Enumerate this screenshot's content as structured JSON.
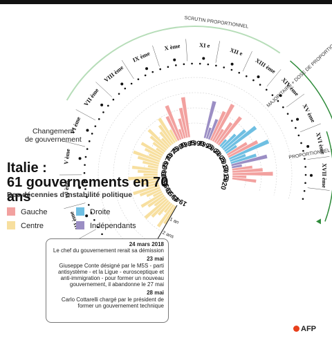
{
  "title": "Italie :\n61 gouvernements en 70 ans",
  "subtitle": "Des décennies d'instabilité politique",
  "legend": [
    {
      "label": "Gauche",
      "color": "#f2a19f"
    },
    {
      "label": "Droite",
      "color": "#6fbfe2"
    },
    {
      "label": "Centre",
      "color": "#f7df9f"
    },
    {
      "label": "Indépendants",
      "color": "#9b8ec4"
    }
  ],
  "changement_label": "Changement\nde gouvernement",
  "ring_labels": {
    "scrutin_proportionnel": "SCRUTIN PROPORTIONNEL",
    "majoritaire": "MAJORITAIRE + DOSE DE PROPORTIONNELLE",
    "proportionnel_prime": "PROPORTIONNEL + PRIME AU VAINQUEUR"
  },
  "callout": [
    {
      "date": "24 mars 2018",
      "text": "Le chef du gouvernement rerait sa démission"
    },
    {
      "date": "23 mai",
      "text": "Giuseppe Conte désigné par le M5S - parti antisystème - et la Ligue - eurosceptique et anti-immigration - pour former un nouveau gouvernement, il abandonne le 27 mai"
    },
    {
      "date": "28 mai",
      "text": "Carlo Cottarelli chargé par le président de former un gouvernement technique"
    }
  ],
  "credit": "AFP",
  "chart_data": {
    "type": "bar",
    "layout": "radial",
    "year_ticks": [
      "1945",
      "1950",
      "1955",
      "1960",
      "1965",
      "1970",
      "1975",
      "1980",
      "1985",
      "1990",
      "1995",
      "2000",
      "2005",
      "2010",
      "2015",
      "2020"
    ],
    "duration_axis": {
      "ticks": [
        "1 an",
        "2 ans",
        "3 ans",
        "4 ans"
      ]
    },
    "legislatures": [
      "Ière législature",
      "II ème",
      "III ème",
      "IV ème",
      "V ème",
      "VI ème",
      "VII ème",
      "VIII ème",
      "IX ème",
      "X ème",
      "XI e",
      "XII e",
      "XIII ème",
      "XIV ème",
      "XV ème",
      "XVI ème",
      "XVII ème"
    ],
    "bars_legend": "Each bar is one government, colored by political camp; bar length = duration",
    "series": [
      {
        "name": "Centre",
        "segments_years": [
          [
            1945,
            1981
          ]
        ]
      },
      {
        "name": "Gauche",
        "segments_years": [
          [
            1981,
            1987
          ],
          [
            1996,
            2001
          ],
          [
            2006,
            2008
          ],
          [
            2013,
            2018
          ]
        ]
      },
      {
        "name": "Droite",
        "segments_years": [
          [
            2001,
            2006
          ],
          [
            2008,
            2011
          ]
        ]
      },
      {
        "name": "Indépendants",
        "segments_years": [
          [
            1993,
            1996
          ],
          [
            2011,
            2013
          ]
        ]
      }
    ]
  }
}
